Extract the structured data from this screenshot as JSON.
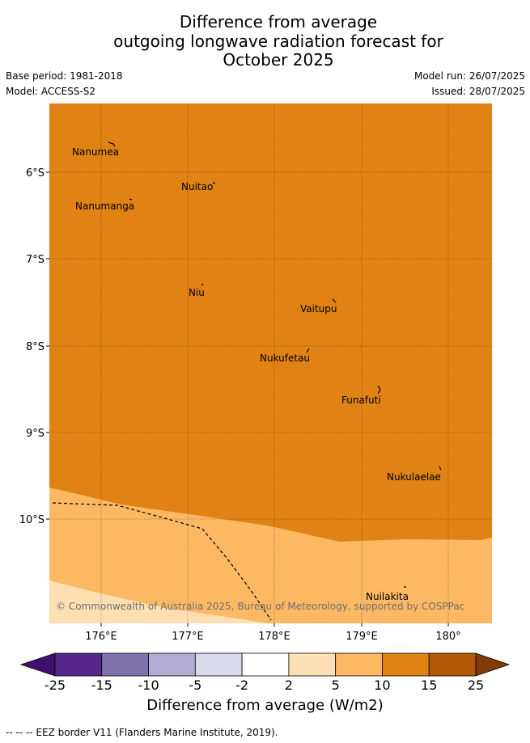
{
  "title": {
    "line1": "Difference from average",
    "line2": "outgoing longwave radiation forecast for",
    "line3": "October 2025"
  },
  "meta": {
    "base_period": "Base period: 1981-2018",
    "model": "Model: ACCESS-S2",
    "model_run": "Model run: 26/07/2025",
    "issued": "Issued: 28/07/2025"
  },
  "map": {
    "lat_ticks": [
      "6°S",
      "7°S",
      "8°S",
      "9°S",
      "10°S"
    ],
    "lon_ticks": [
      "176°E",
      "177°E",
      "178°E",
      "179°E",
      "180°"
    ],
    "islands": [
      "Nanumea",
      "Nuitao",
      "Nanumanga",
      "Niu",
      "Vaitupu",
      "Nukufetau",
      "Funafuti",
      "Nukulaelae",
      "Nuilakita"
    ],
    "copyright": "© Commonwealth of Australia 2025, Bureau of Meteorology, supported by COSPPac",
    "field_colors": {
      "10 to 15": "#e08314",
      "5 to 10": "#fdb863",
      "2 to 5": "#fedfb2"
    }
  },
  "colorbar": {
    "tick_labels": [
      "-25",
      "-15",
      "-10",
      "-5",
      "-2",
      "2",
      "5",
      "10",
      "15",
      "25"
    ],
    "colors": [
      "#401070",
      "#542788",
      "#8073ac",
      "#b2abd2",
      "#d8daeb",
      "#ffffff",
      "#fee0b6",
      "#fdb863",
      "#e08214",
      "#b35806",
      "#7f3b08"
    ],
    "label": "Difference from average (W/m2)"
  },
  "footnote": "--  --  -- EEZ border V11 (Flanders Marine Institute, 2019)."
}
